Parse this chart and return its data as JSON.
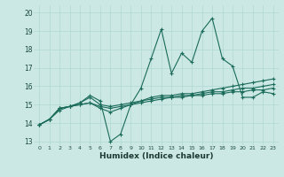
{
  "xlabel": "Humidex (Indice chaleur)",
  "ylabel": "",
  "background_color": "#cce8e4",
  "grid_color": "#b0d8d4",
  "line_color": "#1a6b5a",
  "xlim": [
    -0.5,
    23.5
  ],
  "ylim": [
    12.8,
    20.4
  ],
  "yticks": [
    13,
    14,
    15,
    16,
    17,
    18,
    19,
    20
  ],
  "xticks": [
    0,
    1,
    2,
    3,
    4,
    5,
    6,
    7,
    8,
    9,
    10,
    11,
    12,
    13,
    14,
    15,
    16,
    17,
    18,
    19,
    20,
    21,
    22,
    23
  ],
  "series": [
    [
      13.9,
      14.2,
      14.8,
      14.9,
      15.1,
      15.5,
      15.2,
      13.0,
      13.4,
      15.0,
      15.9,
      17.5,
      19.1,
      16.7,
      17.8,
      17.3,
      19.0,
      19.7,
      17.5,
      17.1,
      15.4,
      15.4,
      15.7,
      15.6
    ],
    [
      13.9,
      14.2,
      14.8,
      14.9,
      15.0,
      15.1,
      14.8,
      14.6,
      14.8,
      15.0,
      15.2,
      15.4,
      15.5,
      15.5,
      15.6,
      15.6,
      15.7,
      15.8,
      15.9,
      16.0,
      16.1,
      16.2,
      16.3,
      16.4
    ],
    [
      13.9,
      14.2,
      14.7,
      14.9,
      15.0,
      15.1,
      14.9,
      14.8,
      14.9,
      15.0,
      15.1,
      15.2,
      15.3,
      15.4,
      15.4,
      15.5,
      15.5,
      15.6,
      15.6,
      15.7,
      15.7,
      15.8,
      15.8,
      15.9
    ],
    [
      13.9,
      14.2,
      14.8,
      14.9,
      15.1,
      15.4,
      15.0,
      14.9,
      15.0,
      15.1,
      15.2,
      15.3,
      15.4,
      15.4,
      15.5,
      15.5,
      15.6,
      15.7,
      15.7,
      15.8,
      15.9,
      15.9,
      16.0,
      16.1
    ]
  ]
}
